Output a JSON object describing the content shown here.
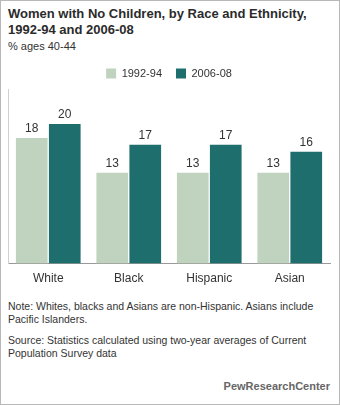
{
  "chart_data": {
    "type": "bar",
    "title": "Women with No Children, by Race and Ethnicity, 1992-94 and 2006-08",
    "subtitle": "% ages 40-44",
    "categories": [
      "White",
      "Black",
      "Hispanic",
      "Asian"
    ],
    "series": [
      {
        "name": "1992-94",
        "color": "#bfd3bf",
        "values": [
          18,
          13,
          13,
          13
        ]
      },
      {
        "name": "2006-08",
        "color": "#1f6e6e",
        "values": [
          20,
          17,
          17,
          16
        ]
      }
    ],
    "ylim": [
      0,
      25
    ],
    "yticks": [],
    "grid": false,
    "legend": "top",
    "data_labels": true,
    "tick_labels": "x",
    "note": "Note: Whites, blacks and Asians are non-Hispanic. Asians include Pacific Islanders.",
    "source": "Source: Statistics calculated using two-year averages of Current Population Survey data",
    "credit": "PewResearchCenter"
  }
}
